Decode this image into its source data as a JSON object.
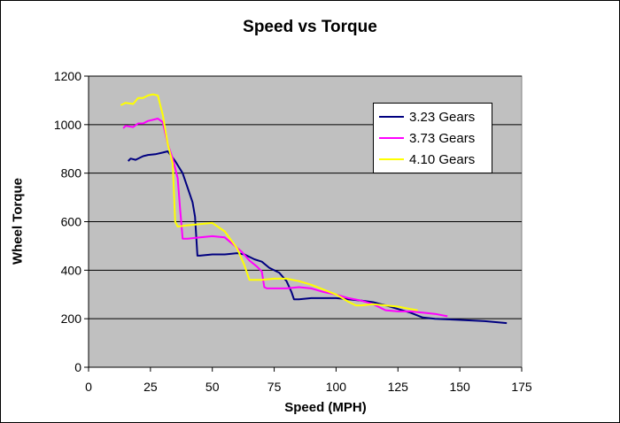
{
  "chart_data": {
    "type": "line",
    "title": "Speed vs Torque",
    "xlabel": "Speed (MPH)",
    "ylabel": "Wheel Torque",
    "xlim": [
      0,
      175
    ],
    "ylim": [
      0,
      1200
    ],
    "xticks": [
      "0",
      "25",
      "50",
      "75",
      "100",
      "125",
      "150",
      "175"
    ],
    "yticks": [
      "0",
      "200",
      "400",
      "600",
      "800",
      "1000",
      "1200"
    ],
    "grid": true,
    "plot_background": "#c0c0c0",
    "legend_position": "top-right",
    "series": [
      {
        "name": "3.23 Gears",
        "color": "#000080",
        "x": [
          16,
          17,
          19,
          22,
          24,
          27,
          30,
          32,
          35,
          38,
          40,
          42,
          43,
          44,
          45,
          50,
          55,
          60,
          63,
          67,
          70,
          73,
          77,
          80,
          82,
          83,
          85,
          90,
          95,
          100,
          105,
          110,
          115,
          120,
          125,
          130,
          135,
          140,
          150,
          160,
          169
        ],
        "y": [
          850,
          860,
          855,
          870,
          875,
          878,
          885,
          890,
          850,
          800,
          740,
          680,
          620,
          460,
          460,
          465,
          465,
          470,
          465,
          445,
          435,
          410,
          390,
          355,
          310,
          280,
          280,
          285,
          285,
          285,
          280,
          275,
          268,
          255,
          240,
          225,
          205,
          200,
          195,
          190,
          182
        ]
      },
      {
        "name": "3.73 Gears",
        "color": "#ff00ff",
        "x": [
          14,
          15,
          18,
          20,
          22,
          24,
          26,
          28,
          30,
          32,
          34,
          36,
          37,
          38,
          40,
          45,
          50,
          55,
          58,
          62,
          65,
          68,
          70,
          71,
          72,
          80,
          85,
          90,
          95,
          100,
          105,
          110,
          115,
          120,
          125,
          130,
          135,
          140,
          145
        ],
        "y": [
          985,
          995,
          990,
          1005,
          1005,
          1015,
          1020,
          1025,
          1010,
          920,
          860,
          780,
          650,
          530,
          530,
          535,
          540,
          535,
          510,
          475,
          440,
          415,
          395,
          330,
          325,
          325,
          330,
          325,
          310,
          300,
          285,
          275,
          260,
          235,
          230,
          230,
          225,
          220,
          210
        ]
      },
      {
        "name": "4.10 Gears",
        "color": "#ffff00",
        "x": [
          13,
          15,
          18,
          20,
          22,
          24,
          26,
          28,
          30,
          32,
          34,
          35,
          36,
          40,
          45,
          50,
          55,
          60,
          63,
          65,
          70,
          75,
          80,
          85,
          90,
          95,
          100,
          105,
          108,
          110,
          115,
          120,
          125,
          130,
          133
        ],
        "y": [
          1080,
          1090,
          1085,
          1110,
          1110,
          1120,
          1125,
          1120,
          1040,
          920,
          840,
          600,
          580,
          585,
          590,
          595,
          560,
          490,
          420,
          360,
          360,
          365,
          365,
          355,
          340,
          320,
          300,
          270,
          255,
          255,
          260,
          255,
          250,
          240,
          235
        ]
      }
    ]
  }
}
